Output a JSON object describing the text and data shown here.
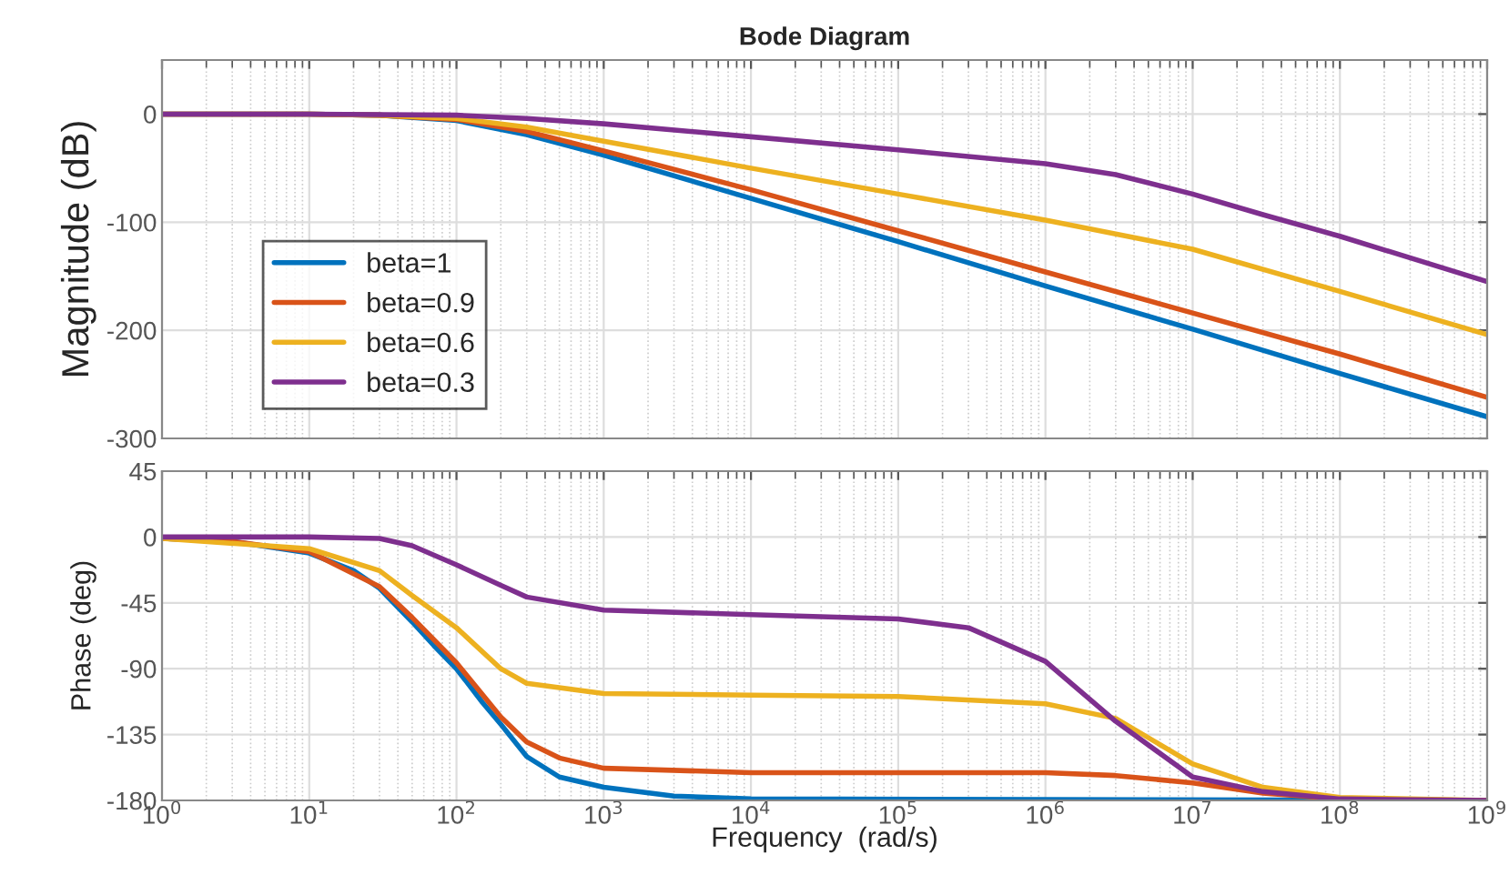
{
  "chart_data": [
    {
      "type": "line",
      "title": "Bode Diagram",
      "ylabel": "Magnitude (dB)",
      "xlim": [
        1,
        1000000000
      ],
      "ylim": [
        -300,
        50
      ],
      "log": "x",
      "grid": true,
      "legend": "left",
      "tick_labels": "y",
      "xticks": [
        1,
        10,
        100,
        1000,
        10000,
        100000,
        1000000,
        10000000,
        100000000,
        1000000000
      ],
      "yticks": [
        -300,
        -200,
        -100,
        0
      ],
      "series": [
        {
          "name": "beta=1",
          "color": "#0072bd",
          "x": [
            1,
            10,
            30,
            100,
            300,
            1000,
            10000,
            100000,
            1000000,
            10000000,
            100000000,
            1000000000
          ],
          "values": [
            0,
            0,
            -1,
            -6,
            -19,
            -38,
            -78,
            -118,
            -159,
            -199,
            -240,
            -280
          ]
        },
        {
          "name": "beta=0.9",
          "color": "#d95319",
          "x": [
            1,
            10,
            30,
            100,
            300,
            1000,
            10000,
            100000,
            1000000,
            10000000,
            100000000,
            1000000000
          ],
          "values": [
            0,
            0,
            -1,
            -5,
            -16,
            -34,
            -70,
            -108,
            -146,
            -184,
            -222,
            -262
          ]
        },
        {
          "name": "beta=0.6",
          "color": "#edb120",
          "x": [
            1,
            10,
            30,
            100,
            300,
            1000,
            10000,
            100000,
            1000000,
            10000000,
            100000000,
            1000000000
          ],
          "values": [
            0,
            0,
            -1,
            -4,
            -12,
            -25,
            -50,
            -74,
            -98,
            -125,
            -164,
            -204
          ]
        },
        {
          "name": "beta=0.3",
          "color": "#7e2f8e",
          "x": [
            1,
            10,
            100,
            300,
            1000,
            10000,
            100000,
            1000000,
            3000000,
            10000000,
            30000000,
            100000000,
            1000000000
          ],
          "values": [
            0,
            0,
            -1,
            -4,
            -9,
            -21,
            -33,
            -46,
            -56,
            -74,
            -93,
            -113,
            -155
          ]
        }
      ]
    },
    {
      "type": "line",
      "ylabel": "Phase (deg)",
      "xlabel": "Frequency  (rad/s)",
      "xlim": [
        1,
        1000000000
      ],
      "ylim": [
        -180,
        45
      ],
      "log": "x",
      "grid": true,
      "xticks": [
        {
          "value": 1,
          "label": "10$^{0}$"
        },
        {
          "value": 10,
          "label": "10$^{1}$"
        },
        {
          "value": 100,
          "label": "10$^{2}$"
        },
        {
          "value": 1000,
          "label": "10$^{3}$"
        },
        {
          "value": 10000,
          "label": "10$^{4}$"
        },
        {
          "value": 100000,
          "label": "10$^{5}$"
        },
        {
          "value": 1000000,
          "label": "10$^{6}$"
        },
        {
          "value": 10000000,
          "label": "10$^{7}$"
        },
        {
          "value": 100000000,
          "label": "10$^{8}$"
        },
        {
          "value": 1000000000,
          "label": "10$^{9}$"
        }
      ],
      "yticks": [
        -180,
        -135,
        -90,
        -45,
        0,
        45
      ],
      "series": [
        {
          "color": "#0072bd",
          "x": [
            1,
            3,
            10,
            20,
            30,
            50,
            70,
            100,
            150,
            200,
            300,
            500,
            1000,
            3000,
            10000,
            1000000000
          ],
          "values": [
            -1,
            -3,
            -11,
            -23,
            -35,
            -58,
            -74,
            -90,
            -113,
            -128,
            -150,
            -164,
            -171,
            -177,
            -179,
            -180
          ]
        },
        {
          "color": "#d95319",
          "x": [
            1,
            3,
            10,
            30,
            50,
            100,
            200,
            300,
            500,
            1000,
            10000,
            1000000,
            3000000,
            10000000,
            30000000,
            100000000,
            1000000000
          ],
          "values": [
            -1,
            -3,
            -10,
            -34,
            -55,
            -86,
            -123,
            -140,
            -151,
            -158,
            -161,
            -161,
            -163,
            -168,
            -175,
            -179,
            -180
          ]
        },
        {
          "color": "#edb120",
          "x": [
            1,
            10,
            30,
            50,
            100,
            200,
            300,
            1000,
            10000,
            100000,
            1000000,
            3000000,
            10000000,
            30000000,
            100000000,
            1000000000
          ],
          "values": [
            -1,
            -8,
            -23,
            -40,
            -62,
            -90,
            -100,
            -107,
            -108,
            -109,
            -114,
            -124,
            -155,
            -171,
            -178,
            -180
          ]
        },
        {
          "color": "#7e2f8e",
          "x": [
            1,
            10,
            30,
            50,
            100,
            200,
            300,
            1000,
            10000,
            100000,
            300000,
            1000000,
            3000000,
            10000000,
            30000000,
            100000000,
            1000000000
          ],
          "values": [
            0,
            0,
            -1,
            -6,
            -19,
            -33,
            -41,
            -50,
            -53,
            -56,
            -62,
            -85,
            -126,
            -164,
            -174,
            -179,
            -180
          ]
        }
      ]
    }
  ]
}
